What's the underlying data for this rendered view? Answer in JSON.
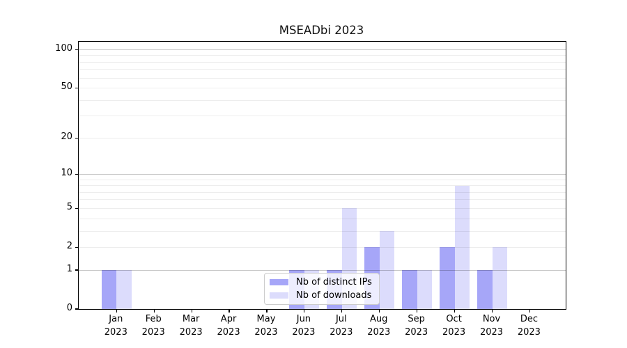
{
  "title": "MSEADbi 2023",
  "chart_data": {
    "type": "bar",
    "title": "MSEADbi 2023",
    "categories": [
      "Jan\n2023",
      "Feb\n2023",
      "Mar\n2023",
      "Apr\n2023",
      "May\n2023",
      "Jun\n2023",
      "Jul\n2023",
      "Aug\n2023",
      "Sep\n2023",
      "Oct\n2023",
      "Nov\n2023",
      "Dec\n2023"
    ],
    "series": [
      {
        "name": "Nb of distinct IPs",
        "color": "rgba(70,70,240,0.48)",
        "values": [
          1,
          0,
          0,
          0,
          0,
          1,
          1,
          2,
          1,
          2,
          1,
          0
        ]
      },
      {
        "name": "Nb of downloads",
        "color": "rgba(70,70,240,0.19)",
        "values": [
          1,
          0,
          0,
          0,
          0,
          1,
          5,
          3,
          1,
          8,
          2,
          0
        ]
      }
    ],
    "yticks": [
      0,
      1,
      2,
      5,
      10,
      20,
      50,
      100
    ],
    "grid_major": [
      1,
      10,
      100
    ],
    "grid_minor": [
      2,
      3,
      4,
      5,
      6,
      7,
      8,
      9,
      20,
      30,
      40,
      50,
      60,
      70,
      80,
      90
    ],
    "scale": "log1p",
    "ylim": [
      0,
      115
    ],
    "grid": "on",
    "legend_position": "inside-bottom-center",
    "colors": {
      "grid_major": "rgba(0,0,0,0.22)",
      "grid_minor": "rgba(0,0,0,0.07)",
      "axis": "#000000",
      "background": "#ffffff"
    }
  }
}
